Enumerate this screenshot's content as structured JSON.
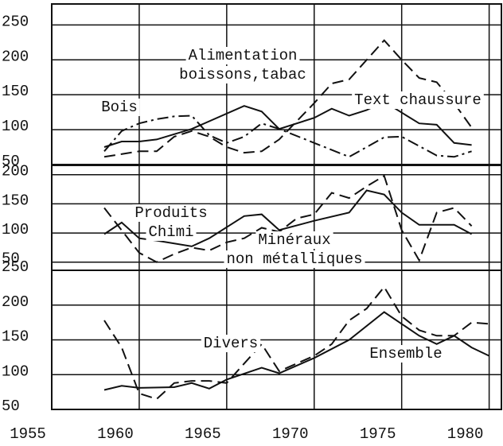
{
  "chart_data": [
    {
      "type": "line",
      "xlim": [
        1955,
        1980.7
      ],
      "ylim": [
        50,
        280
      ],
      "yticks": [
        50,
        100,
        150,
        200,
        250
      ],
      "series": [
        {
          "name": [
            "Bois"
          ],
          "color": "#111111",
          "dash": "solid",
          "x": [
            1958,
            1959,
            1960,
            1961,
            1963,
            1966,
            1967,
            1968,
            1970,
            1971,
            1972,
            1973,
            1974,
            1976,
            1977,
            1978,
            1979
          ],
          "values": [
            75,
            83,
            83,
            86,
            101,
            134,
            126,
            101,
            117,
            130,
            120,
            128,
            140,
            109,
            107,
            81,
            78
          ]
        },
        {
          "name": [
            "Alimentation",
            "boissons,tabac"
          ],
          "color": "#111111",
          "dash": "dashed",
          "x": [
            1958,
            1960,
            1961,
            1962,
            1963,
            1964,
            1965,
            1966,
            1967,
            1968,
            1970,
            1971,
            1972,
            1973,
            1974,
            1975,
            1976,
            1977,
            1978,
            1979
          ],
          "values": [
            61,
            69,
            69,
            90,
            98,
            90,
            75,
            67,
            69,
            86,
            138,
            166,
            172,
            200,
            228,
            200,
            174,
            168,
            138,
            103
          ]
        },
        {
          "name": [
            "Text chaussure"
          ],
          "color": "#111111",
          "dash": "dashdot",
          "x": [
            1958,
            1959,
            1960,
            1961,
            1962,
            1963,
            1964,
            1965,
            1966,
            1967,
            1968,
            1970,
            1972,
            1974,
            1975,
            1977,
            1978,
            1979
          ],
          "values": [
            69,
            98,
            109,
            115,
            119,
            120,
            92,
            81,
            90,
            109,
            101,
            81,
            61,
            89,
            90,
            63,
            61,
            69
          ]
        }
      ]
    },
    {
      "type": "line",
      "xlim": [
        1955,
        1980.7
      ],
      "ylim": [
        36,
        216
      ],
      "yticks": [
        50,
        100,
        150,
        200
      ],
      "series": [
        {
          "name": [
            "Produits",
            "Chimi"
          ],
          "color": "#111111",
          "dash": "solid",
          "x": [
            1958,
            1959,
            1960,
            1961,
            1963,
            1964,
            1966,
            1967,
            1968,
            1970,
            1972,
            1973,
            1974,
            1975,
            1976,
            1977,
            1978,
            1979
          ],
          "values": [
            98,
            118,
            91,
            87,
            77,
            91,
            129,
            132,
            105,
            121,
            135,
            173,
            166,
            135,
            114,
            114,
            114,
            98
          ]
        },
        {
          "name": [
            "Minéraux",
            "non métalliques"
          ],
          "color": "#111111",
          "dash": "dashed",
          "x": [
            1958,
            1960,
            1961,
            1962,
            1963,
            1964,
            1965,
            1966,
            1967,
            1968,
            1969,
            1970,
            1971,
            1972,
            1973,
            1974,
            1975,
            1976,
            1977,
            1978,
            1979
          ],
          "values": [
            143,
            66,
            50,
            64,
            75,
            70,
            84,
            91,
            109,
            102,
            125,
            132,
            169,
            160,
            180,
            198,
            105,
            53,
            135,
            143,
            112
          ]
        }
      ]
    },
    {
      "type": "line",
      "xlim": [
        1955,
        1980.7
      ],
      "ylim": [
        50,
        250
      ],
      "yticks": [
        50,
        100,
        150,
        200,
        250
      ],
      "xticks": [
        1955,
        1960,
        1965,
        1970,
        1975,
        1980
      ],
      "series": [
        {
          "name": [
            "Ensemble"
          ],
          "color": "#111111",
          "dash": "solid",
          "x": [
            1958,
            1959,
            1960,
            1962,
            1963,
            1964,
            1965,
            1967,
            1968,
            1970,
            1972,
            1974,
            1975,
            1976,
            1977,
            1978,
            1979,
            1980
          ],
          "values": [
            78,
            84,
            81,
            82,
            88,
            80,
            93,
            110,
            102,
            124,
            150,
            190,
            173,
            156,
            144,
            156,
            139,
            127
          ]
        },
        {
          "name": [
            "Divers"
          ],
          "color": "#111111",
          "dash": "dashed",
          "x": [
            1958,
            1959,
            1960,
            1961,
            1962,
            1963,
            1964,
            1965,
            1967,
            1968,
            1970,
            1971,
            1972,
            1973,
            1974,
            1975,
            1976,
            1977,
            1978,
            1979,
            1980
          ],
          "values": [
            178,
            139,
            73,
            65,
            88,
            91,
            91,
            88,
            144,
            105,
            127,
            144,
            178,
            195,
            226,
            184,
            164,
            156,
            156,
            175,
            173
          ]
        }
      ]
    }
  ]
}
